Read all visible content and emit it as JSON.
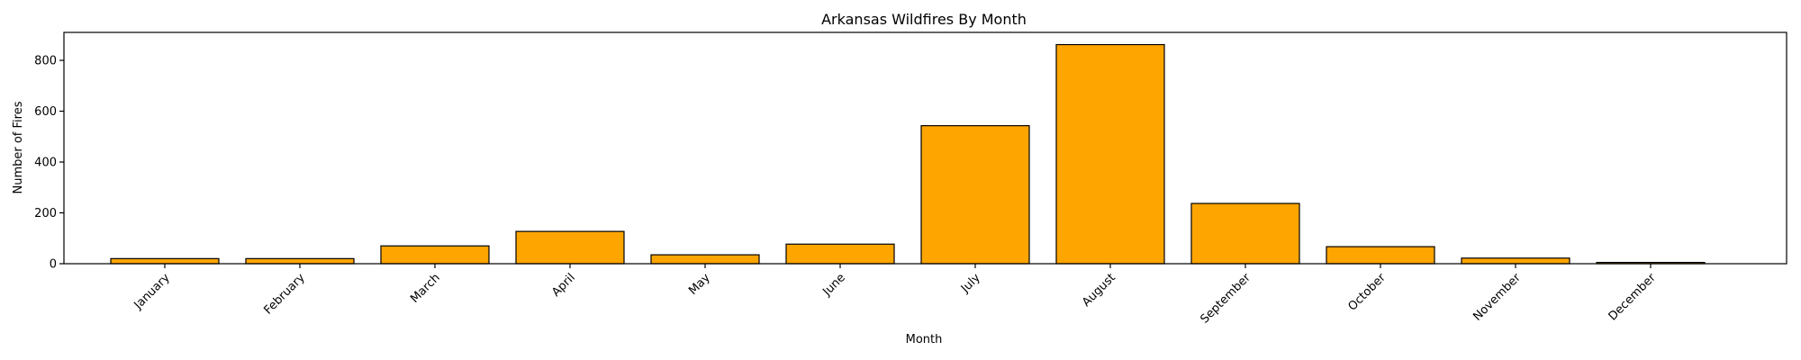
{
  "chart_data": {
    "type": "bar",
    "title": "Arkansas Wildfires By Month",
    "xlabel": "Month",
    "ylabel": "Number of Fires",
    "categories": [
      "January",
      "February",
      "March",
      "April",
      "May",
      "June",
      "July",
      "August",
      "September",
      "October",
      "November",
      "December"
    ],
    "values": [
      20,
      20,
      70,
      127,
      35,
      77,
      543,
      862,
      237,
      67,
      22,
      5
    ],
    "ylim": [
      0,
      910
    ],
    "yticks": [
      0,
      200,
      400,
      600,
      800
    ],
    "grid": false,
    "bar_color": "#ffa500",
    "edge_color": "#000000"
  }
}
